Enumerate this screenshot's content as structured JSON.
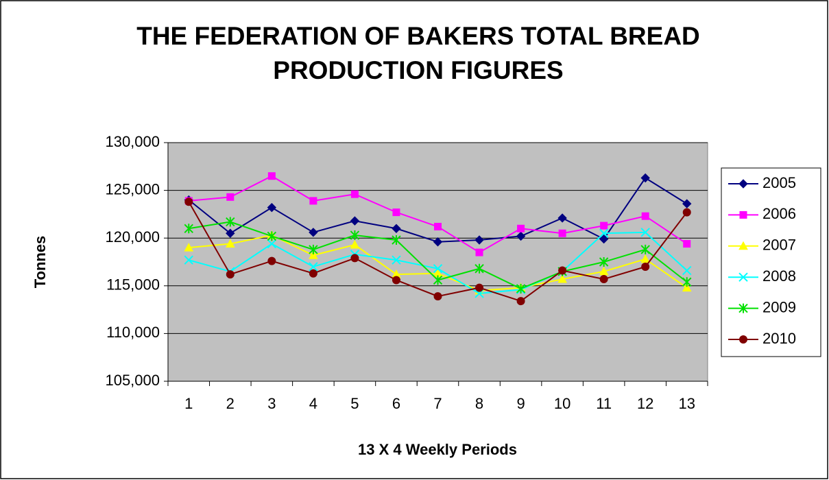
{
  "chart_data": {
    "type": "line",
    "title": "THE FEDERATION OF BAKERS TOTAL BREAD PRODUCTION FIGURES",
    "x_label": "13 X 4 Weekly Periods",
    "y_label": "Tonnes",
    "categories": [
      "1",
      "2",
      "3",
      "4",
      "5",
      "6",
      "7",
      "8",
      "9",
      "10",
      "11",
      "12",
      "13"
    ],
    "ylim": [
      105000,
      130000
    ],
    "yticks": [
      {
        "value": 105000,
        "label": "105,000"
      },
      {
        "value": 110000,
        "label": "110,000"
      },
      {
        "value": 115000,
        "label": "115,000"
      },
      {
        "value": 120000,
        "label": "120,000"
      },
      {
        "value": 125000,
        "label": "125,000"
      },
      {
        "value": 130000,
        "label": "130,000"
      }
    ],
    "grid": true,
    "legend": "right",
    "series": [
      {
        "name": "2005",
        "color": "#000080",
        "marker": "diamond",
        "values": [
          124000,
          120500,
          123200,
          120600,
          121800,
          121000,
          119600,
          119800,
          120200,
          122100,
          119900,
          126300,
          123600
        ]
      },
      {
        "name": "2006",
        "color": "#ff00ff",
        "marker": "square",
        "values": [
          123900,
          124300,
          126500,
          123900,
          124600,
          122700,
          121200,
          118500,
          121000,
          120500,
          121300,
          122300,
          119400
        ]
      },
      {
        "name": "2007",
        "color": "#ffff00",
        "marker": "triangle",
        "values": [
          119000,
          119400,
          120300,
          118200,
          119300,
          116200,
          116300,
          114500,
          114800,
          115700,
          116500,
          117800,
          114800
        ]
      },
      {
        "name": "2008",
        "color": "#00ffff",
        "marker": "x",
        "values": [
          117700,
          116500,
          119400,
          117000,
          118300,
          117700,
          116800,
          114200,
          114600,
          116500,
          120500,
          120600,
          116600
        ]
      },
      {
        "name": "2009",
        "color": "#00e000",
        "marker": "star",
        "values": [
          121000,
          121700,
          120200,
          118800,
          120300,
          119800,
          115600,
          116800,
          114700,
          116500,
          117500,
          118800,
          115400
        ]
      },
      {
        "name": "2010",
        "color": "#800000",
        "marker": "circle",
        "values": [
          123800,
          116200,
          117600,
          116300,
          117900,
          115600,
          113900,
          114800,
          113400,
          116600,
          115700,
          117000,
          122700
        ]
      }
    ]
  }
}
